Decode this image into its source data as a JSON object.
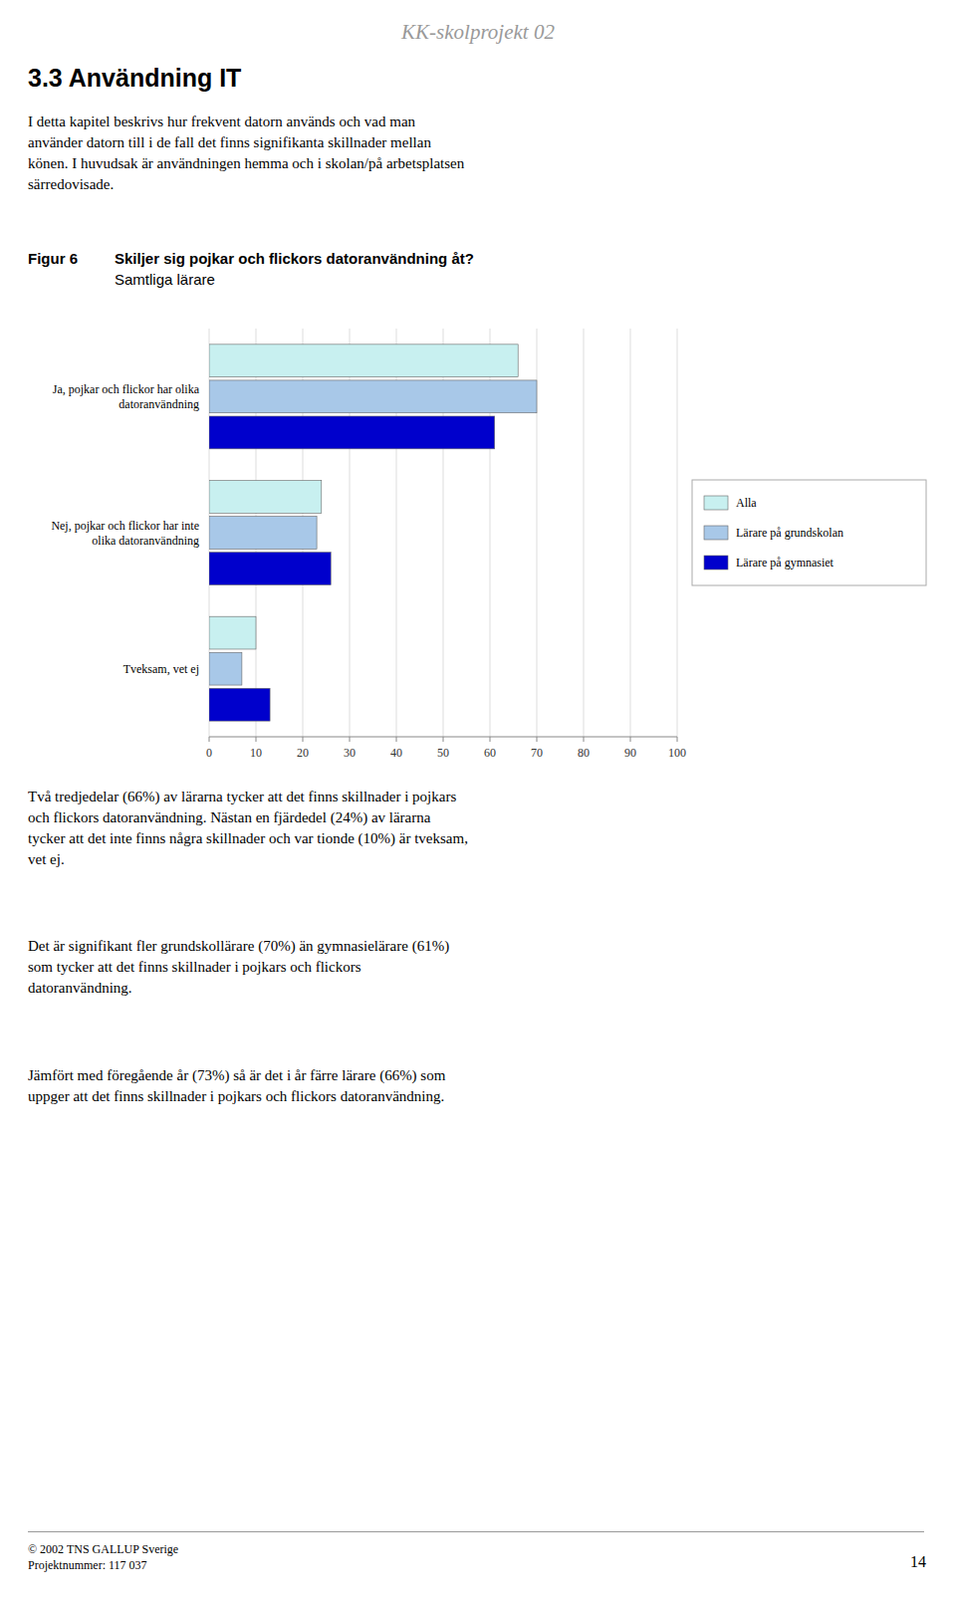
{
  "page_title": "KK-skolprojekt 02",
  "section_title": "3.3 Användning IT",
  "body_text": "I detta kapitel beskrivs hur frekvent datorn används och vad man\nanvänder datorn till i de fall det finns signifikanta skillnader mellan\nkönen. I huvudsak är användningen hemma och i skolan/på arbetsplatsen\nsärredovisade.",
  "footer_texts": [
    "Två tredjedelar (66%) av lärarna tycker att det finns skillnader i pojkars\noch flickors datoranvändning. Nästan en fjärdedel (24%) av lärarna\ntycker att det inte finns några skillnader och var tionde (10%) är tveksam,\nvet ej.",
    "Det är signifikant fler grundskollärare (70%) än gymnasielärare (61%)\nsom tycker att det finns skillnader i pojkars och flickors\ndatoranvändning.",
    "Jämfört med föregående år (73%) så är det i år färre lärare (66%) som\nuppger att det finns skillnader i pojkars och flickors datoranvändning."
  ],
  "copyright": "© 2002 TNS GALLUP Sverige\nProjektnummer: 117 037",
  "page_number": "14",
  "chart_data": {
    "type": "bar",
    "orientation": "horizontal",
    "figure_label": "Figur 6",
    "title": "Skiljer sig pojkar och flickors datoranvändning åt?",
    "subtitle": "Samtliga lärare",
    "categories": [
      "Ja, pojkar och flickor har olika\ndatoranvändning",
      "Nej, pojkar och flickor har inte\nolika datoranvändning",
      "Tveksam, vet ej"
    ],
    "series": [
      {
        "name": "Alla",
        "color": "#c8f0f0",
        "values": [
          66,
          24,
          10
        ]
      },
      {
        "name": "Lärare på grundskolan",
        "color": "#a8c8e8",
        "values": [
          70,
          23,
          7
        ]
      },
      {
        "name": "Lärare på gymnasiet",
        "color": "#0000cc",
        "values": [
          61,
          26,
          13
        ]
      }
    ],
    "xlim": [
      0,
      100
    ],
    "xticks": [
      0,
      10,
      20,
      30,
      40,
      50,
      60,
      70,
      80,
      90,
      100
    ],
    "grid": true,
    "legend": "right"
  }
}
